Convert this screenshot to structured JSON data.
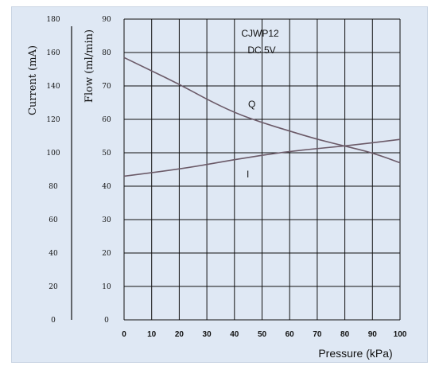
{
  "chart_data": {
    "type": "line",
    "annotations": [
      "CJWP12",
      "DC 5V"
    ],
    "xlabel": "Pressure (kPa)",
    "ylabel_flow": "Flow (ml/min)",
    "ylabel_current": "Current (mA)",
    "xlim": [
      0,
      100
    ],
    "ylim_flow": [
      0,
      90
    ],
    "ylim_current": [
      0,
      180
    ],
    "x_ticks": [
      "0",
      "10",
      "20",
      "30",
      "40",
      "50",
      "60",
      "70",
      "80",
      "90",
      "100"
    ],
    "flow_ticks": [
      "0",
      "10",
      "20",
      "30",
      "40",
      "50",
      "60",
      "70",
      "80",
      "90"
    ],
    "current_ticks": [
      "0",
      "20",
      "40",
      "60",
      "80",
      "100",
      "120",
      "140",
      "160",
      "180"
    ],
    "grid": true,
    "line_color": "#6b5a68",
    "series": [
      {
        "name": "Q",
        "axis": "flow",
        "x": [
          0,
          10,
          20,
          30,
          40,
          50,
          60,
          70,
          80,
          90,
          100
        ],
        "y": [
          78.5,
          74.5,
          70.5,
          66,
          62,
          59,
          56.5,
          54,
          52,
          50,
          47
        ]
      },
      {
        "name": "I",
        "axis": "current",
        "x": [
          0,
          20,
          40,
          60,
          80,
          100
        ],
        "y": [
          86,
          90,
          96,
          101,
          104,
          108
        ]
      }
    ]
  }
}
